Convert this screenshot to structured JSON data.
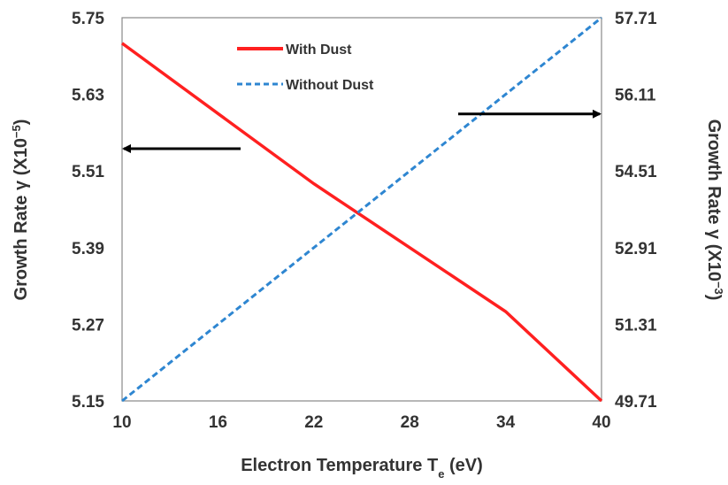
{
  "chart_data": {
    "type": "line",
    "x_ticks": [
      10,
      16,
      22,
      28,
      34,
      40
    ],
    "xlim": [
      10,
      40
    ],
    "xlabel": {
      "main": "Electron Temperature T",
      "sub": "e",
      "tail": " (eV)"
    },
    "y_left": {
      "ticks": [
        "5.75",
        "5.63",
        "5.51",
        "5.39",
        "5.27",
        "5.15"
      ],
      "ylim": [
        5.15,
        5.75
      ],
      "label": {
        "main": "Growth Rate γ  (X10",
        "sup": "−5",
        "tail": ")"
      }
    },
    "y_right": {
      "ticks": [
        "57.71",
        "56.11",
        "54.51",
        "52.91",
        "51.31",
        "49.71"
      ],
      "ylim": [
        49.71,
        57.71
      ],
      "label": {
        "main": "Growth Rate γ  (X10",
        "sup": "−3",
        "tail": ")"
      }
    },
    "series": [
      {
        "name": "With Dust",
        "axis": "left",
        "color": "#ff2020",
        "style": "solid",
        "x": [
          10,
          16,
          22,
          28,
          34,
          40
        ],
        "y": [
          5.71,
          5.6,
          5.49,
          5.39,
          5.29,
          5.15
        ]
      },
      {
        "name": "Without Dust",
        "axis": "right",
        "color": "#2e86d1",
        "style": "dashed",
        "x": [
          10,
          16,
          22,
          28,
          34,
          40
        ],
        "y": [
          49.71,
          51.31,
          52.91,
          54.51,
          56.11,
          57.71
        ]
      }
    ],
    "annotations": [
      {
        "name": "left-axis-arrow",
        "direction": "left",
        "series": "With Dust"
      },
      {
        "name": "right-axis-arrow",
        "direction": "right",
        "series": "Without Dust"
      }
    ],
    "grid": false,
    "legend_position": "top-center"
  }
}
